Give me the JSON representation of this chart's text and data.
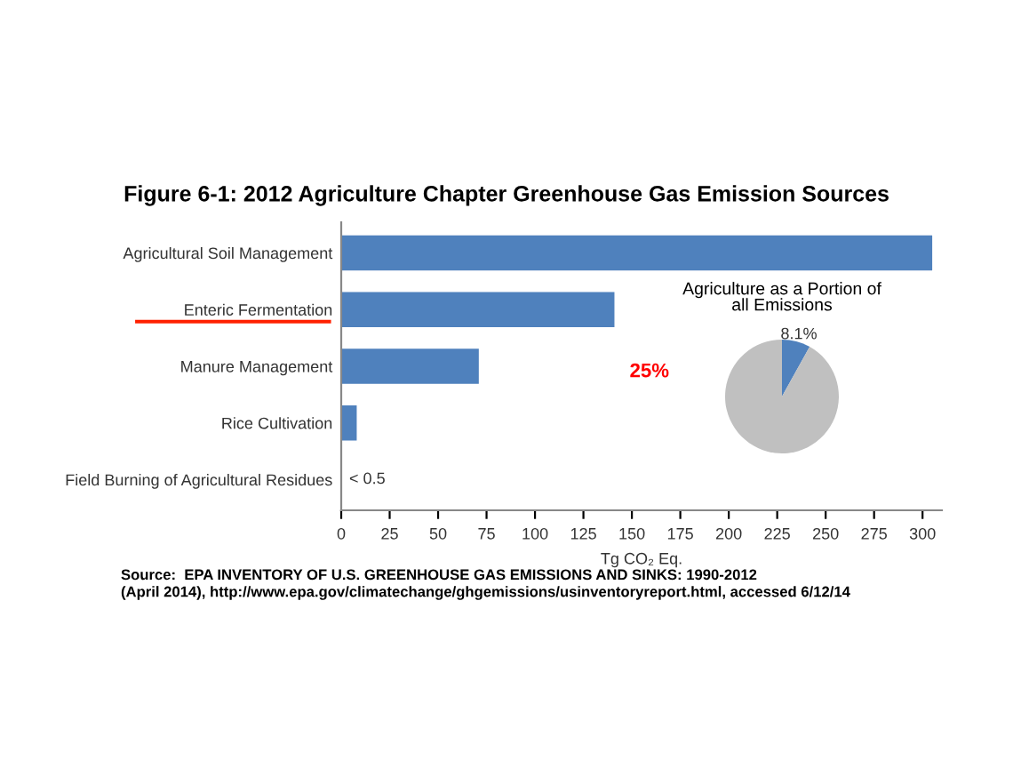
{
  "chart_data": [
    {
      "type": "bar",
      "orientation": "horizontal",
      "title": "Figure 6-1: 2012 Agriculture Chapter Greenhouse Gas Emission Sources",
      "xlabel": "Tg CO₂ Eq.",
      "categories": [
        "Agricultural Soil Management",
        "Enteric Fermentation",
        "Manure Management",
        "Rice Cultivation",
        "Field Burning of Agricultural Residues"
      ],
      "values": [
        305,
        141,
        71,
        8,
        0.3
      ],
      "color": "#4f81bd",
      "value_labels": [
        null,
        null,
        null,
        null,
        "< 0.5"
      ],
      "xlim": [
        0,
        310
      ],
      "xticks": [
        0,
        25,
        50,
        75,
        100,
        125,
        150,
        175,
        200,
        225,
        250,
        275,
        300
      ],
      "grid": false,
      "annotations": [
        "25%",
        "Source:  EPA INVENTORY OF U.S. GREENHOUSE GAS EMISSIONS AND SINKS: 1990-2012\n(April 2014), http://www.epa.gov/climatechange/ghgemissions/usinventoryreport.html, accessed 6/12/14"
      ]
    },
    {
      "type": "pie",
      "title": "Agriculture as a Portion of\nall Emissions",
      "categories": [
        null,
        null
      ],
      "values": [
        8.1,
        91.9
      ],
      "colors": [
        "#4f81bd",
        "#c0c0c0"
      ],
      "value_labels": [
        "8.1%",
        null
      ]
    }
  ]
}
